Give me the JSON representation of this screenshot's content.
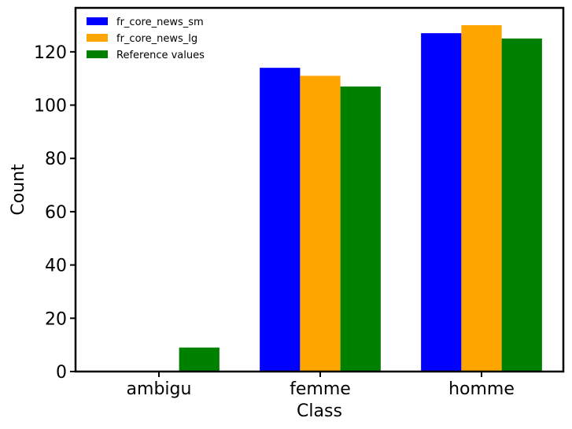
{
  "chart_data": {
    "type": "bar",
    "categories": [
      "ambigu",
      "femme",
      "homme"
    ],
    "series": [
      {
        "name": "fr_core_news_sm",
        "values": [
          0,
          114,
          127
        ],
        "color": "#0000ff"
      },
      {
        "name": "fr_core_news_lg",
        "values": [
          0,
          111,
          130
        ],
        "color": "#ffa500"
      },
      {
        "name": "Reference values",
        "values": [
          9,
          107,
          125
        ],
        "color": "#008000"
      }
    ],
    "title": "",
    "xlabel": "Class",
    "ylabel": "Count",
    "ylim": [
      0,
      136.5
    ],
    "yticks": [
      0,
      20,
      40,
      60,
      80,
      100,
      120
    ],
    "grid": false,
    "legend_position": "top-left"
  }
}
